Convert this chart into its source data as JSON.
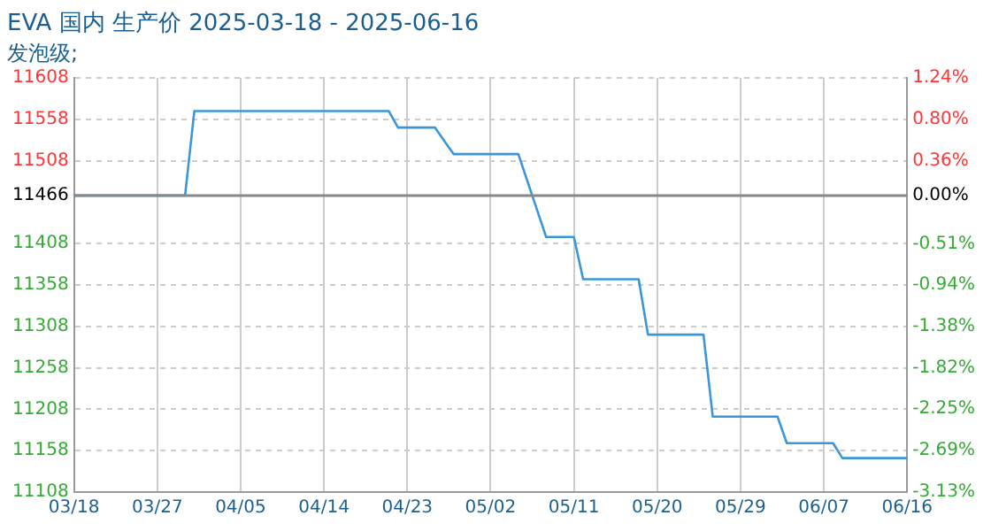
{
  "chart_data": {
    "type": "line",
    "title": "EVA 国内 生产价 2025-03-18 - 2025-06-16",
    "subtitle": "发泡级;",
    "x": [
      "--03-18",
      "--03-30",
      "--03-31",
      "--04-21",
      "--04-22",
      "--04-26",
      "--04-28",
      "--05-05",
      "--05-08",
      "--05-11",
      "--05-12",
      "--05-18",
      "--05-19",
      "--05-25",
      "--05-26",
      "--06-02",
      "--06-03",
      "--06-08",
      "--06-09",
      "--06-16"
    ],
    "series": [
      {
        "color": "#3a96d8",
        "values": [
          11466,
          11466,
          11568,
          11568,
          11548,
          11548,
          11516,
          11516,
          11416,
          11416,
          11365,
          11365,
          11298,
          11298,
          11199,
          11199,
          11167,
          11167,
          11149,
          11149
        ]
      }
    ],
    "xlim": [
      "--03-18",
      "--06-16"
    ],
    "xticks": [
      {
        "value": "--03-18",
        "label": "03/18"
      },
      {
        "value": "--03-27",
        "label": "03/27"
      },
      {
        "value": "--04-05",
        "label": "04/05"
      },
      {
        "value": "--04-14",
        "label": "04/14"
      },
      {
        "value": "--04-23",
        "label": "04/23"
      },
      {
        "value": "--05-02",
        "label": "05/02"
      },
      {
        "value": "--05-11",
        "label": "05/11"
      },
      {
        "value": "--05-20",
        "label": "05/20"
      },
      {
        "value": "--05-29",
        "label": "05/29"
      },
      {
        "value": "--06-07",
        "label": "06/07"
      },
      {
        "value": "--06-16",
        "label": "06/16"
      }
    ],
    "ylim": [
      11108,
      11608
    ],
    "yticks": [
      11108,
      11158,
      11208,
      11258,
      11308,
      11358,
      11408,
      11466,
      11508,
      11558,
      11608
    ],
    "y2lim": [
      -3.13,
      1.24
    ],
    "y2ticks": [
      {
        "value": -3.13,
        "label": "-3.13%"
      },
      {
        "value": -2.69,
        "label": "-2.69%"
      },
      {
        "value": -2.25,
        "label": "-2.25%"
      },
      {
        "value": -1.82,
        "label": "-1.82%"
      },
      {
        "value": -1.38,
        "label": "-1.38%"
      },
      {
        "value": -0.94,
        "label": "-0.94%"
      },
      {
        "value": -0.51,
        "label": "-0.51%"
      },
      {
        "value": 0,
        "label": "0.00%"
      },
      {
        "value": 0.36,
        "label": "0.36%"
      },
      {
        "value": 0.8,
        "label": "0.80%"
      },
      {
        "value": 1.24,
        "label": "1.24%"
      }
    ],
    "ref_lines": [
      {
        "axis": "y",
        "value": 11466,
        "color": "#888888"
      }
    ],
    "grid": true,
    "legend": false,
    "marker": "none",
    "line_style": "solid"
  }
}
